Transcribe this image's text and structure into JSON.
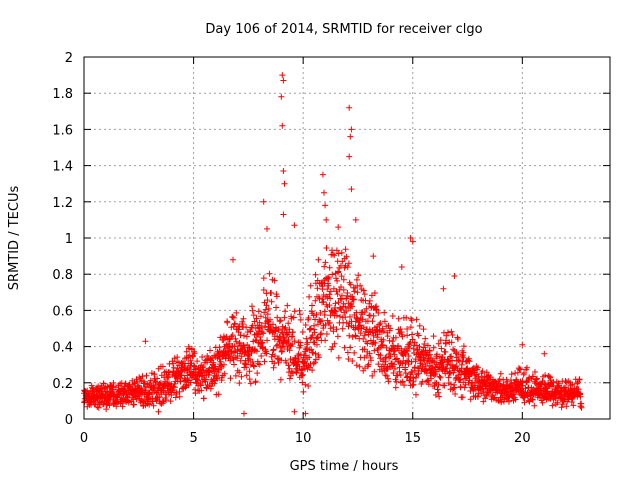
{
  "chart_data": {
    "type": "scatter",
    "title": "Day 106 of 2014, SRMTID for receiver clgo",
    "xlabel": "GPS time / hours",
    "ylabel": "SRMTID / TECUs",
    "xlim": [
      0,
      24
    ],
    "ylim": [
      0,
      2
    ],
    "grid": true,
    "x_ticks": [
      0,
      5,
      10,
      15,
      20
    ],
    "x_tick_labels": [
      "0",
      "5",
      "10",
      "15",
      "20"
    ],
    "y_ticks": [
      0,
      0.2,
      0.4,
      0.6,
      0.8,
      1.0,
      1.2,
      1.4,
      1.6,
      1.8,
      2.0
    ],
    "y_tick_labels": [
      "0",
      "0.2",
      "0.4",
      "0.6",
      "0.8",
      "1",
      "1.2",
      "1.4",
      "1.6",
      "1.8",
      "2"
    ],
    "marker": "+",
    "marker_color": "#ff0000",
    "x_range_of_data": [
      0,
      22.7
    ],
    "envelope": {
      "x": [
        0,
        1,
        2,
        3,
        4,
        4.5,
        5,
        5.5,
        6,
        6.5,
        7,
        7.5,
        8,
        8.5,
        9,
        9.5,
        10,
        10.5,
        11,
        11.5,
        12,
        12.5,
        13,
        13.5,
        14,
        14.5,
        15,
        15.5,
        16,
        16.5,
        17,
        17.5,
        18,
        19,
        20,
        21,
        22,
        22.7
      ],
      "typical": [
        0.11,
        0.11,
        0.12,
        0.14,
        0.18,
        0.24,
        0.26,
        0.22,
        0.25,
        0.33,
        0.4,
        0.35,
        0.42,
        0.5,
        0.42,
        0.3,
        0.28,
        0.45,
        0.62,
        0.6,
        0.62,
        0.52,
        0.45,
        0.4,
        0.34,
        0.33,
        0.28,
        0.3,
        0.25,
        0.27,
        0.25,
        0.22,
        0.18,
        0.15,
        0.15,
        0.14,
        0.13,
        0.13
      ],
      "upper": [
        0.18,
        0.2,
        0.2,
        0.26,
        0.32,
        0.4,
        0.4,
        0.36,
        0.42,
        0.55,
        0.62,
        0.55,
        0.78,
        0.85,
        0.7,
        0.6,
        0.62,
        0.9,
        0.95,
        0.95,
        0.92,
        0.8,
        0.72,
        0.68,
        0.62,
        0.58,
        0.55,
        0.55,
        0.45,
        0.5,
        0.48,
        0.38,
        0.28,
        0.25,
        0.3,
        0.25,
        0.22,
        0.22
      ]
    },
    "peaks": [
      {
        "x": 2.8,
        "y": 0.43
      },
      {
        "x": 6.8,
        "y": 0.88
      },
      {
        "x": 8.2,
        "y": 1.2
      },
      {
        "x": 8.35,
        "y": 1.05
      },
      {
        "x": 9.05,
        "y": 1.9
      },
      {
        "x": 9.1,
        "y": 1.87
      },
      {
        "x": 9.0,
        "y": 1.78
      },
      {
        "x": 9.05,
        "y": 1.62
      },
      {
        "x": 9.1,
        "y": 1.37
      },
      {
        "x": 9.15,
        "y": 1.3
      },
      {
        "x": 9.1,
        "y": 1.13
      },
      {
        "x": 9.6,
        "y": 1.07
      },
      {
        "x": 10.9,
        "y": 1.35
      },
      {
        "x": 10.95,
        "y": 1.25
      },
      {
        "x": 11.0,
        "y": 1.18
      },
      {
        "x": 11.05,
        "y": 1.1
      },
      {
        "x": 11.6,
        "y": 1.06
      },
      {
        "x": 12.1,
        "y": 1.72
      },
      {
        "x": 12.2,
        "y": 1.6
      },
      {
        "x": 12.15,
        "y": 1.56
      },
      {
        "x": 12.1,
        "y": 1.45
      },
      {
        "x": 12.2,
        "y": 1.27
      },
      {
        "x": 12.4,
        "y": 1.1
      },
      {
        "x": 13.2,
        "y": 0.9
      },
      {
        "x": 14.5,
        "y": 0.84
      },
      {
        "x": 14.9,
        "y": 1.0
      },
      {
        "x": 15.0,
        "y": 0.98
      },
      {
        "x": 16.4,
        "y": 0.72
      },
      {
        "x": 16.9,
        "y": 0.79
      },
      {
        "x": 20.0,
        "y": 0.41
      },
      {
        "x": 21.0,
        "y": 0.36
      }
    ],
    "lows": [
      {
        "x": 7.3,
        "y": 0.03
      },
      {
        "x": 9.6,
        "y": 0.04
      },
      {
        "x": 10.1,
        "y": 0.03
      },
      {
        "x": 3.4,
        "y": 0.04
      }
    ]
  }
}
